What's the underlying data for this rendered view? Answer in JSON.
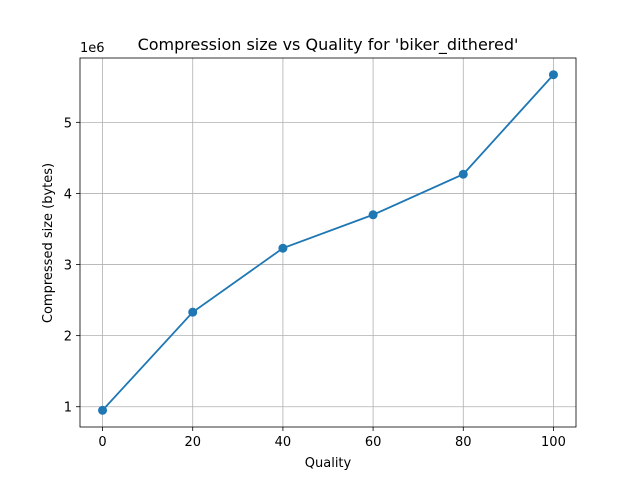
{
  "chart_data": {
    "type": "line",
    "title": "Compression size vs Quality for 'biker_dithered'",
    "xlabel": "Quality",
    "ylabel": "Compressed size (bytes)",
    "y_scale_note": "1e6",
    "x": [
      0,
      20,
      40,
      60,
      80,
      100
    ],
    "series": [
      {
        "values": [
          950000,
          2330000,
          3230000,
          3700000,
          4270000,
          5670000
        ],
        "color": "#1f77b4",
        "marker": "circle"
      }
    ],
    "xlim": [
      -5,
      105
    ],
    "ylim": [
      715000,
      5905000
    ],
    "x_ticks": [
      0,
      20,
      40,
      60,
      80,
      100
    ],
    "y_ticks": [
      1000000,
      2000000,
      3000000,
      4000000,
      5000000
    ],
    "y_tick_labels": [
      "1",
      "2",
      "3",
      "4",
      "5"
    ],
    "grid": true
  }
}
